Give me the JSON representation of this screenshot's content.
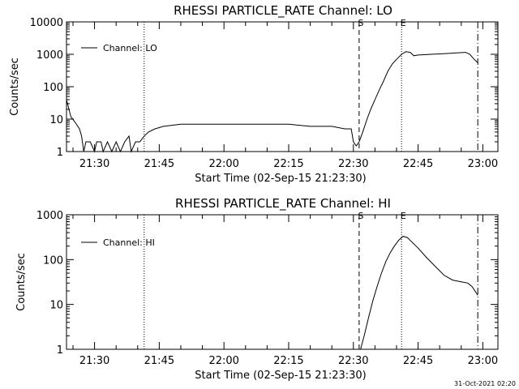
{
  "chart_data": [
    {
      "type": "line",
      "title": "RHESSI PARTICLE_RATE Channel: LO",
      "xlabel": "Start Time (02-Sep-15 21:23:30)",
      "ylabel": "Counts/sec",
      "yscale": "log",
      "xlim": [
        "21:23:30",
        "23:03:30"
      ],
      "ylim": [
        1,
        10000
      ],
      "x_tick_labels": [
        "21:30",
        "21:45",
        "22:00",
        "22:15",
        "22:30",
        "22:45",
        "23:00"
      ],
      "y_tick_labels": [
        "1",
        "10",
        "100",
        "1000",
        "10000"
      ],
      "grid": false,
      "legend": "top-left",
      "markers": [
        {
          "time": "21:41:30",
          "style": "dotted",
          "label": ""
        },
        {
          "time": "22:31:20",
          "style": "dashed",
          "label": "S"
        },
        {
          "time": "22:41:10",
          "style": "dotted",
          "label": "E"
        },
        {
          "time": "22:58:50",
          "style": "dash-dot",
          "label": ""
        }
      ],
      "series": [
        {
          "name": "Channel: LO",
          "color": "#000000",
          "points": [
            [
              "21:23:30",
              40
            ],
            [
              "21:24:30",
              12
            ],
            [
              "21:25:30",
              8
            ],
            [
              "21:26:30",
              5
            ],
            [
              "21:27:00",
              3
            ],
            [
              "21:27:30",
              1
            ],
            [
              "21:28:00",
              2
            ],
            [
              "21:29:00",
              2
            ],
            [
              "21:30:00",
              1
            ],
            [
              "21:30:30",
              2
            ],
            [
              "21:31:30",
              2
            ],
            [
              "21:32:00",
              1
            ],
            [
              "21:33:00",
              2
            ],
            [
              "21:34:00",
              1
            ],
            [
              "21:35:00",
              2
            ],
            [
              "21:36:00",
              1
            ],
            [
              "21:37:00",
              2
            ],
            [
              "21:38:00",
              3
            ],
            [
              "21:38:30",
              1
            ],
            [
              "21:39:30",
              2
            ],
            [
              "21:40:30",
              2
            ],
            [
              "21:41:30",
              3
            ],
            [
              "21:42:30",
              4
            ],
            [
              "21:44:00",
              5
            ],
            [
              "21:46:00",
              6
            ],
            [
              "21:50:00",
              7
            ],
            [
              "21:55:00",
              7
            ],
            [
              "22:00:00",
              7
            ],
            [
              "22:05:00",
              7
            ],
            [
              "22:10:00",
              7
            ],
            [
              "22:15:00",
              7
            ],
            [
              "22:20:00",
              6
            ],
            [
              "22:25:00",
              6
            ],
            [
              "22:28:00",
              5
            ],
            [
              "22:29:30",
              5
            ],
            [
              "22:30:00",
              2
            ],
            [
              "22:30:40",
              1.5
            ],
            [
              "22:31:20",
              2
            ],
            [
              "22:32:10",
              4
            ],
            [
              "22:33:10",
              10
            ],
            [
              "22:34:00",
              20
            ],
            [
              "22:35:00",
              40
            ],
            [
              "22:36:00",
              80
            ],
            [
              "22:37:00",
              150
            ],
            [
              "22:38:00",
              300
            ],
            [
              "22:39:00",
              500
            ],
            [
              "22:40:00",
              700
            ],
            [
              "22:41:10",
              1000
            ],
            [
              "22:42:10",
              1200
            ],
            [
              "22:43:10",
              1150
            ],
            [
              "22:44:00",
              900
            ],
            [
              "22:45:00",
              950
            ],
            [
              "22:48:00",
              1000
            ],
            [
              "22:51:00",
              1050
            ],
            [
              "22:54:00",
              1100
            ],
            [
              "22:56:00",
              1150
            ],
            [
              "22:57:00",
              1000
            ],
            [
              "22:58:00",
              700
            ],
            [
              "22:58:50",
              550
            ]
          ]
        }
      ]
    },
    {
      "type": "line",
      "title": "RHESSI PARTICLE_RATE Channel: HI",
      "xlabel": "Start Time (02-Sep-15 21:23:30)",
      "ylabel": "Counts/sec",
      "yscale": "log",
      "xlim": [
        "21:23:30",
        "23:03:30"
      ],
      "ylim": [
        1,
        1000
      ],
      "x_tick_labels": [
        "21:30",
        "21:45",
        "22:00",
        "22:15",
        "22:30",
        "22:45",
        "23:00"
      ],
      "y_tick_labels": [
        "1",
        "10",
        "100",
        "1000"
      ],
      "grid": false,
      "legend": "top-left",
      "markers": [
        {
          "time": "21:41:30",
          "style": "dotted",
          "label": ""
        },
        {
          "time": "22:31:20",
          "style": "dashed",
          "label": "S"
        },
        {
          "time": "22:41:10",
          "style": "dotted",
          "label": "E"
        },
        {
          "time": "22:58:50",
          "style": "dash-dot",
          "label": ""
        }
      ],
      "series": [
        {
          "name": "Channel: HI",
          "color": "#000000",
          "points": [
            [
              "22:31:40",
              1
            ],
            [
              "22:32:30",
              2
            ],
            [
              "22:33:30",
              5
            ],
            [
              "22:34:30",
              12
            ],
            [
              "22:35:30",
              25
            ],
            [
              "22:36:30",
              50
            ],
            [
              "22:37:30",
              90
            ],
            [
              "22:38:30",
              140
            ],
            [
              "22:39:30",
              200
            ],
            [
              "22:40:30",
              270
            ],
            [
              "22:41:30",
              330
            ],
            [
              "22:42:30",
              310
            ],
            [
              "22:43:30",
              250
            ],
            [
              "22:45:00",
              180
            ],
            [
              "22:47:00",
              110
            ],
            [
              "22:49:00",
              70
            ],
            [
              "22:51:00",
              45
            ],
            [
              "22:53:00",
              35
            ],
            [
              "22:55:00",
              32
            ],
            [
              "22:56:30",
              30
            ],
            [
              "22:57:30",
              25
            ],
            [
              "22:58:30",
              18
            ],
            [
              "22:58:50",
              16
            ]
          ]
        }
      ]
    }
  ],
  "footer": {
    "timestamp": "31-Oct-2021 02:20"
  }
}
